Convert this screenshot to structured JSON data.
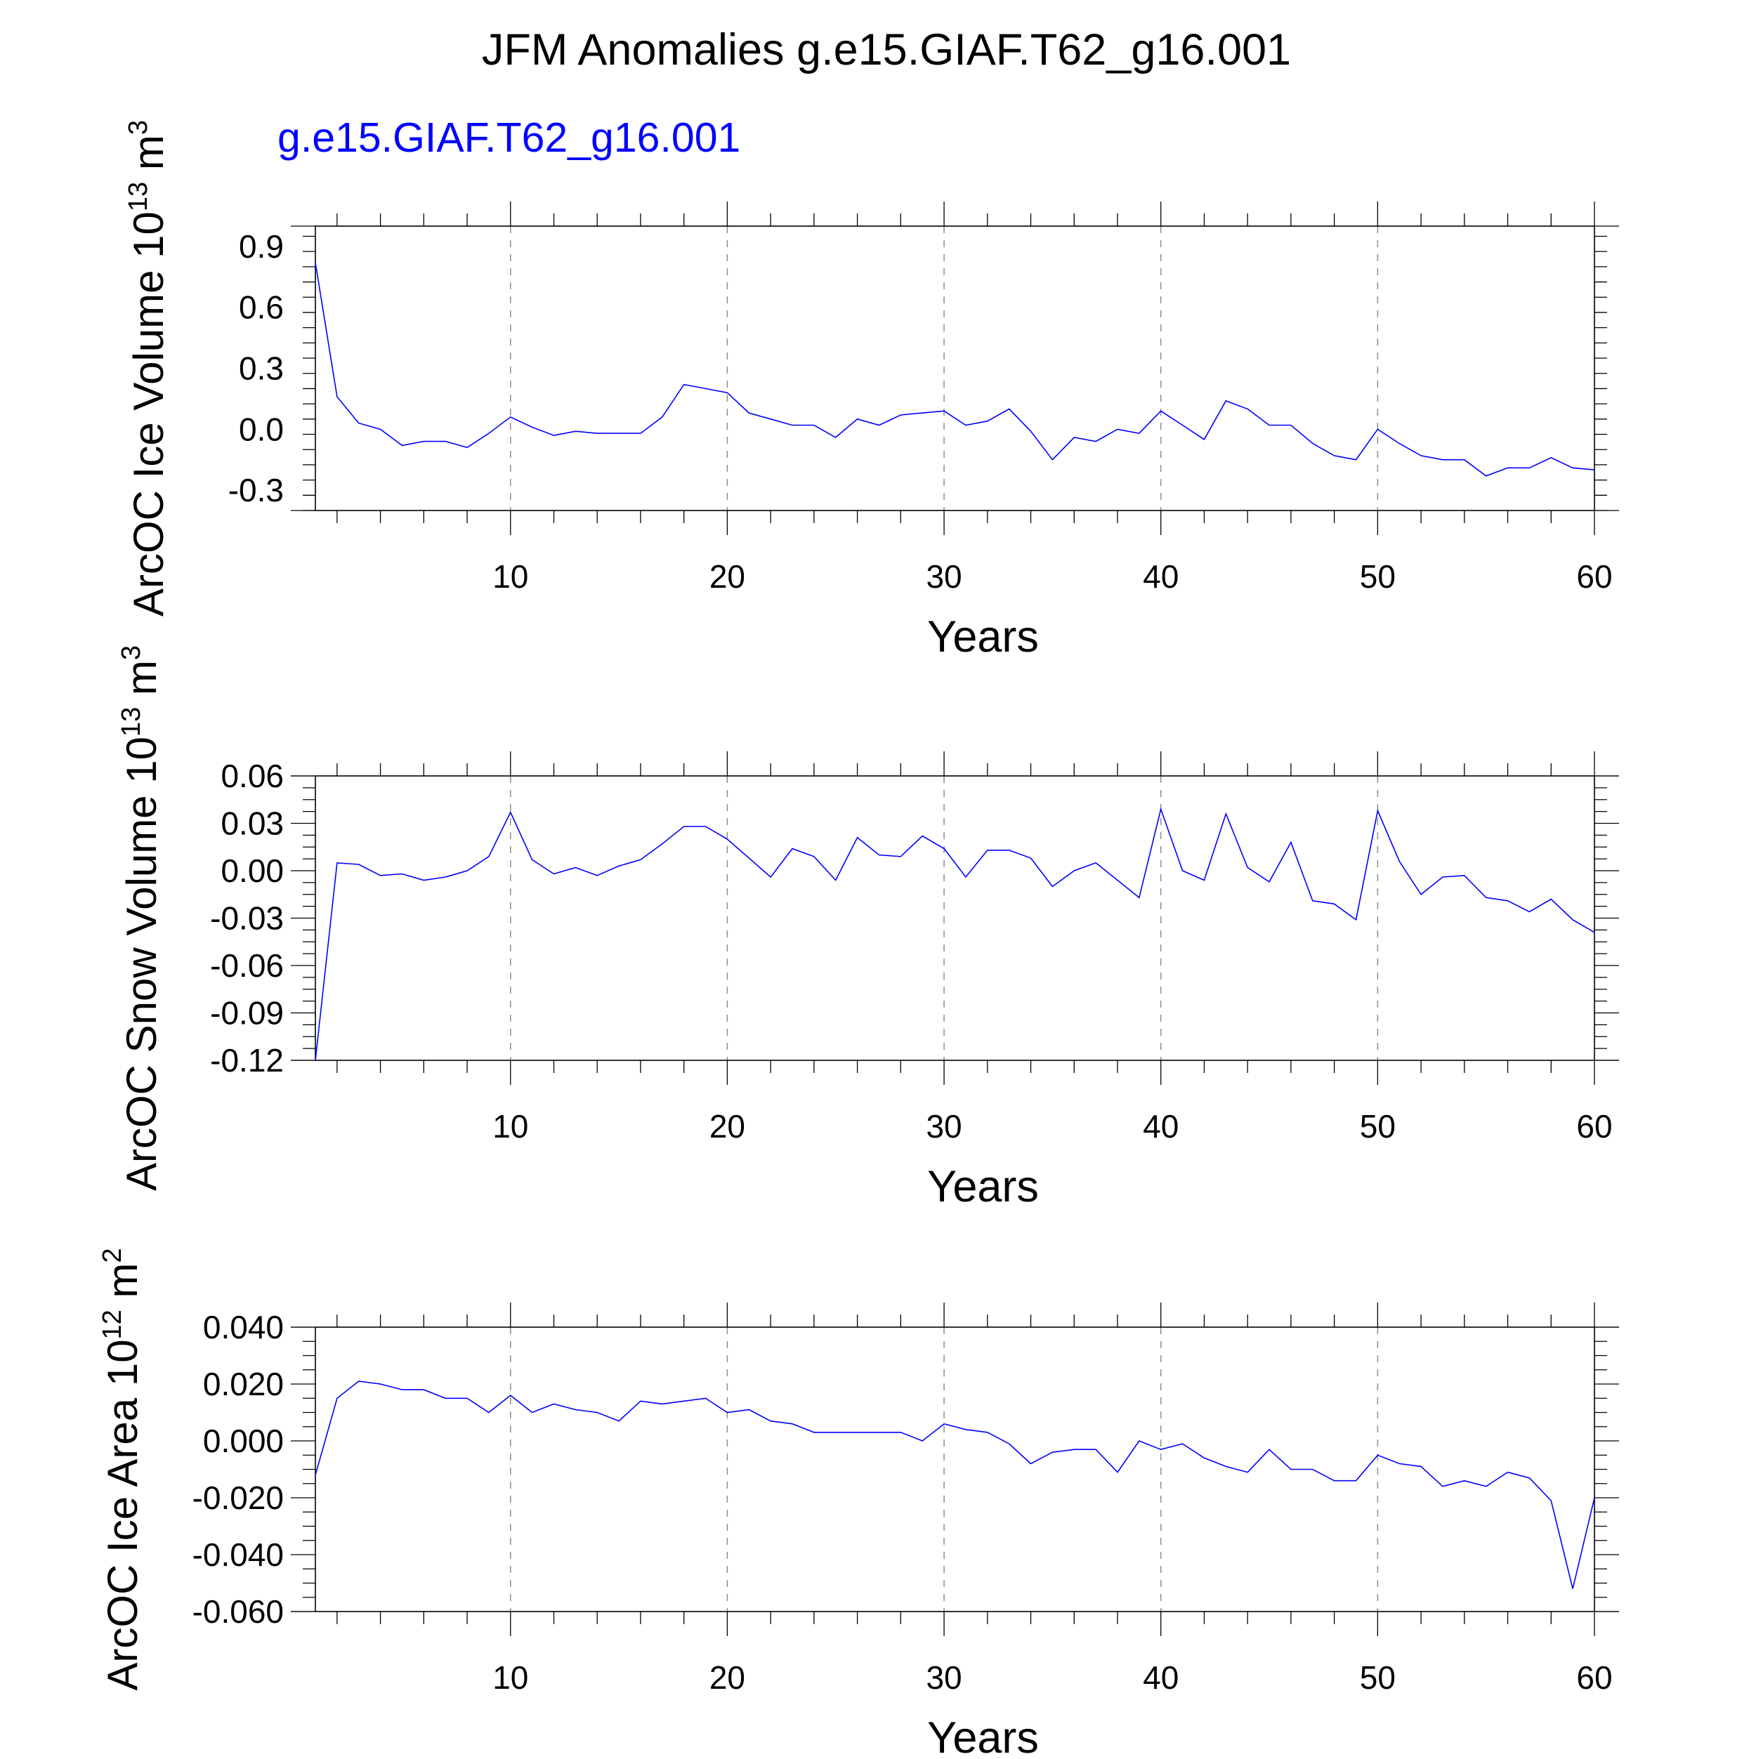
{
  "title": "JFM Anomalies g.e15.GIAF.T62_g16.001",
  "run_label": "g.e15.GIAF.T62_g16.001",
  "colors": {
    "series": "#0000ff",
    "grid": "#8c8c8c",
    "axes": "#000000"
  },
  "chart_data": [
    {
      "type": "line",
      "xlabel": "Years",
      "ylabel": {
        "text": "ArcOC Ice Volume 10",
        "exp": "13",
        "unit": " m",
        "unit_exp": "3"
      },
      "x_ticks": [
        10,
        20,
        30,
        40,
        50,
        60
      ],
      "xlim": [
        1,
        60
      ],
      "y_ticks": [
        "0.9",
        "0.6",
        "0.3",
        "0.0",
        "-0.3"
      ],
      "y_tick_values": [
        0.9,
        0.6,
        0.3,
        0.0,
        -0.3
      ],
      "ylim": [
        -0.4,
        1.0
      ],
      "grid": "x-dashed",
      "series": [
        {
          "x": [
            1,
            2,
            3,
            4,
            5,
            6,
            7,
            8,
            9,
            10,
            11,
            12,
            13,
            14,
            15,
            16,
            17,
            18,
            19,
            20,
            21,
            22,
            23,
            24,
            25,
            26,
            27,
            28,
            29,
            30,
            31,
            32,
            33,
            34,
            35,
            36,
            37,
            38,
            39,
            40,
            41,
            42,
            43,
            44,
            45,
            46,
            47,
            48,
            49,
            50,
            51,
            52,
            53,
            54,
            55,
            56,
            57,
            58,
            59,
            60
          ],
          "values": [
            0.82,
            0.16,
            0.03,
            0.0,
            -0.08,
            -0.06,
            -0.06,
            -0.09,
            -0.02,
            0.06,
            0.01,
            -0.03,
            -0.01,
            -0.02,
            -0.02,
            -0.02,
            0.06,
            0.22,
            0.2,
            0.18,
            0.08,
            0.05,
            0.02,
            0.02,
            -0.04,
            0.05,
            0.02,
            0.07,
            0.08,
            0.09,
            0.02,
            0.04,
            0.1,
            -0.01,
            -0.15,
            -0.04,
            -0.06,
            0.0,
            -0.02,
            0.09,
            0.02,
            -0.05,
            0.14,
            0.1,
            0.02,
            0.02,
            -0.07,
            -0.13,
            -0.15,
            0.0,
            -0.07,
            -0.13,
            -0.15,
            -0.15,
            -0.23,
            -0.19,
            -0.19,
            -0.14,
            -0.19,
            -0.2
          ]
        }
      ]
    },
    {
      "type": "line",
      "xlabel": "Years",
      "ylabel": {
        "text": "ArcOC Snow Volume 10",
        "exp": "13",
        "unit": " m",
        "unit_exp": "3"
      },
      "x_ticks": [
        10,
        20,
        30,
        40,
        50,
        60
      ],
      "xlim": [
        1,
        60
      ],
      "y_ticks": [
        "0.06",
        "0.03",
        "0.00",
        "-0.03",
        "-0.06",
        "-0.09",
        "-0.12"
      ],
      "y_tick_values": [
        0.06,
        0.03,
        0.0,
        -0.03,
        -0.06,
        -0.09,
        -0.12
      ],
      "ylim": [
        -0.12,
        0.06
      ],
      "grid": "x-dashed",
      "series": [
        {
          "x": [
            1,
            2,
            3,
            4,
            5,
            6,
            7,
            8,
            9,
            10,
            11,
            12,
            13,
            14,
            15,
            16,
            17,
            18,
            19,
            20,
            21,
            22,
            23,
            24,
            25,
            26,
            27,
            28,
            29,
            30,
            31,
            32,
            33,
            34,
            35,
            36,
            37,
            38,
            39,
            40,
            41,
            42,
            43,
            44,
            45,
            46,
            47,
            48,
            49,
            50,
            51,
            52,
            53,
            54,
            55,
            56,
            57,
            58,
            59,
            60
          ],
          "values": [
            -0.12,
            0.005,
            0.004,
            -0.003,
            -0.002,
            -0.006,
            -0.004,
            0.0,
            0.009,
            0.037,
            0.007,
            -0.002,
            0.002,
            -0.003,
            0.003,
            0.007,
            0.017,
            0.028,
            0.028,
            0.02,
            0.008,
            -0.004,
            0.014,
            0.009,
            -0.006,
            0.021,
            0.01,
            0.009,
            0.022,
            0.014,
            -0.004,
            0.013,
            0.013,
            0.008,
            -0.01,
            0.0,
            0.005,
            -0.006,
            -0.017,
            0.039,
            0.0,
            -0.006,
            0.036,
            0.002,
            -0.007,
            0.018,
            -0.019,
            -0.021,
            -0.031,
            0.038,
            0.006,
            -0.015,
            -0.004,
            -0.003,
            -0.017,
            -0.019,
            -0.026,
            -0.018,
            -0.031,
            -0.039
          ]
        }
      ]
    },
    {
      "type": "line",
      "xlabel": "Years",
      "ylabel": {
        "text": "ArcOC Ice Area 10",
        "exp": "12",
        "unit": " m",
        "unit_exp": "2"
      },
      "x_ticks": [
        10,
        20,
        30,
        40,
        50,
        60
      ],
      "xlim": [
        1,
        60
      ],
      "y_ticks": [
        "0.040",
        "0.020",
        "0.000",
        "-0.020",
        "-0.040",
        "-0.060"
      ],
      "y_tick_values": [
        0.04,
        0.02,
        0.0,
        -0.02,
        -0.04,
        -0.06
      ],
      "ylim": [
        -0.06,
        0.04
      ],
      "grid": "x-dashed",
      "series": [
        {
          "x": [
            1,
            2,
            3,
            4,
            5,
            6,
            7,
            8,
            9,
            10,
            11,
            12,
            13,
            14,
            15,
            16,
            17,
            18,
            19,
            20,
            21,
            22,
            23,
            24,
            25,
            26,
            27,
            28,
            29,
            30,
            31,
            32,
            33,
            34,
            35,
            36,
            37,
            38,
            39,
            40,
            41,
            42,
            43,
            44,
            45,
            46,
            47,
            48,
            49,
            50,
            51,
            52,
            53,
            54,
            55,
            56,
            57,
            58,
            59,
            60
          ],
          "values": [
            -0.012,
            0.015,
            0.021,
            0.02,
            0.018,
            0.018,
            0.015,
            0.015,
            0.01,
            0.016,
            0.01,
            0.013,
            0.011,
            0.01,
            0.007,
            0.014,
            0.013,
            0.014,
            0.015,
            0.01,
            0.011,
            0.007,
            0.006,
            0.003,
            0.003,
            0.003,
            0.003,
            0.003,
            0.0,
            0.006,
            0.004,
            0.003,
            -0.001,
            -0.008,
            -0.004,
            -0.003,
            -0.003,
            -0.011,
            0.0,
            -0.003,
            -0.001,
            -0.006,
            -0.009,
            -0.011,
            -0.003,
            -0.01,
            -0.01,
            -0.014,
            -0.014,
            -0.005,
            -0.008,
            -0.009,
            -0.016,
            -0.014,
            -0.016,
            -0.011,
            -0.013,
            -0.021,
            -0.052,
            -0.02
          ]
        }
      ]
    }
  ]
}
